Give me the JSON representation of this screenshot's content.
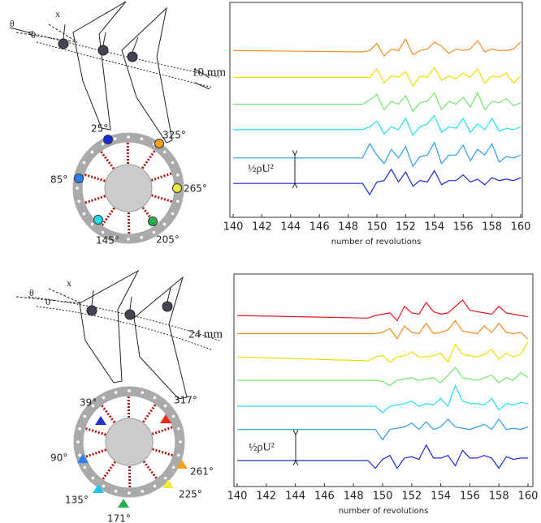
{
  "chart_data": [
    {
      "type": "line",
      "xlabel": "number of revolutions",
      "scale_label": "½ρU²",
      "xlim": [
        140,
        160
      ],
      "xticks": [
        140,
        142,
        144,
        146,
        148,
        150,
        152,
        154,
        156,
        158,
        160
      ],
      "ylim": [
        -1.2,
        6.4
      ],
      "x": [
        140,
        149,
        149.5,
        150,
        150.5,
        151,
        151.5,
        152,
        152.5,
        153,
        153.5,
        154,
        154.5,
        155,
        155.5,
        156,
        156.5,
        157,
        157.5,
        158,
        158.5,
        159,
        159.5,
        160
      ],
      "series": [
        {
          "color": "#f28c1e",
          "values": [
            4.7,
            4.65,
            4.7,
            4.95,
            4.5,
            4.75,
            4.7,
            5.1,
            4.55,
            4.7,
            4.75,
            5.0,
            4.85,
            4.6,
            4.75,
            4.7,
            4.75,
            5.05,
            4.65,
            4.75,
            4.7,
            4.7,
            4.75,
            5.0
          ]
        },
        {
          "color": "#ecdf00",
          "values": [
            3.75,
            3.75,
            3.75,
            4.05,
            3.55,
            3.8,
            3.75,
            3.95,
            3.45,
            3.8,
            3.75,
            4.1,
            3.65,
            3.8,
            3.7,
            3.9,
            3.75,
            4.05,
            3.55,
            3.8,
            3.75,
            3.9,
            3.55,
            3.8
          ]
        },
        {
          "color": "#6fe86f",
          "values": [
            2.8,
            2.8,
            2.95,
            3.15,
            2.6,
            2.9,
            2.8,
            3.1,
            2.55,
            2.85,
            2.9,
            3.2,
            2.6,
            2.9,
            2.8,
            3.05,
            2.7,
            3.2,
            2.6,
            2.9,
            2.85,
            3.0,
            2.75,
            2.85
          ]
        },
        {
          "color": "#1fdff0",
          "values": [
            1.9,
            1.9,
            2.0,
            2.2,
            1.75,
            2.0,
            1.9,
            2.3,
            1.7,
            2.0,
            2.1,
            2.4,
            1.8,
            2.0,
            1.95,
            2.3,
            1.8,
            2.1,
            1.9,
            2.3,
            1.85,
            1.95,
            1.9,
            2.0
          ]
        },
        {
          "color": "#2a9ef0",
          "values": [
            0.9,
            0.9,
            1.4,
            1.0,
            0.7,
            1.2,
            0.9,
            1.3,
            0.6,
            0.95,
            1.0,
            1.45,
            0.7,
            1.0,
            1.0,
            1.35,
            0.8,
            1.2,
            1.0,
            1.4,
            0.75,
            0.95,
            0.9,
            1.0
          ]
        },
        {
          "color": "#1a28d8",
          "values": [
            0,
            0,
            -0.4,
            0.05,
            0.1,
            0.5,
            0.05,
            0.4,
            -0.1,
            0.1,
            0.05,
            0.45,
            -0.05,
            0.1,
            0.1,
            0.3,
            0.05,
            0.15,
            -0.05,
            0.2,
            0.1,
            0.15,
            0.1,
            0.2
          ]
        }
      ]
    },
    {
      "type": "line",
      "xlabel": "number of revolutions",
      "scale_label": "½ρU²",
      "xlim": [
        140,
        160
      ],
      "xticks": [
        140,
        142,
        144,
        146,
        148,
        150,
        152,
        154,
        156,
        158,
        160
      ],
      "ylim": [
        -1,
        7.2
      ],
      "x": [
        140,
        149,
        149.5,
        150,
        150.5,
        151,
        151.5,
        152,
        152.5,
        153,
        153.5,
        154,
        154.5,
        155,
        155.5,
        156,
        156.5,
        157,
        157.5,
        158,
        158.5,
        159,
        159.5,
        160
      ],
      "series": [
        {
          "color": "#e8181b",
          "values": [
            5.6,
            5.5,
            5.6,
            5.65,
            5.7,
            5.4,
            5.95,
            5.7,
            5.65,
            6.1,
            5.75,
            5.65,
            5.7,
            5.95,
            6.2,
            5.8,
            5.75,
            5.7,
            5.65,
            5.95,
            5.7,
            5.65,
            5.6,
            5.55
          ]
        },
        {
          "color": "#f28c1e",
          "values": [
            4.9,
            4.9,
            4.9,
            4.95,
            5.1,
            4.7,
            5.2,
            4.95,
            4.9,
            5.3,
            4.9,
            4.95,
            5.05,
            5.4,
            5.0,
            4.95,
            4.9,
            5.2,
            4.95,
            5.3,
            4.95,
            4.9,
            4.95,
            4.7
          ]
        },
        {
          "color": "#ecdf00",
          "values": [
            4.0,
            3.85,
            4.0,
            4.05,
            3.8,
            4.0,
            4.05,
            4.2,
            4.0,
            4.0,
            4.05,
            4.15,
            3.8,
            4.5,
            4.1,
            4.05,
            4.0,
            4.1,
            4.3,
            3.9,
            4.15,
            4.0,
            4.1,
            4.6
          ]
        },
        {
          "color": "#6fe86f",
          "values": [
            3.1,
            3.1,
            3.1,
            3.05,
            2.9,
            3.1,
            3.15,
            3.2,
            3.1,
            3.15,
            3.2,
            3.0,
            3.3,
            3.6,
            3.2,
            3.15,
            3.1,
            3.2,
            3.3,
            3.0,
            3.2,
            3.1,
            3.4,
            3.2
          ]
        },
        {
          "color": "#1fdff0",
          "values": [
            2.1,
            2.1,
            2.1,
            1.85,
            2.1,
            2.15,
            2.2,
            2.3,
            2.1,
            2.2,
            2.15,
            2.4,
            2.1,
            2.9,
            2.3,
            2.2,
            2.2,
            2.15,
            2.4,
            1.95,
            2.2,
            2.15,
            2.25,
            2.2
          ]
        },
        {
          "color": "#2a9ef0",
          "values": [
            1.2,
            1.2,
            1.2,
            0.8,
            1.2,
            1.25,
            1.3,
            1.45,
            1.2,
            1.5,
            1.2,
            1.3,
            1.6,
            1.3,
            1.25,
            1.2,
            1.3,
            1.4,
            1.2,
            1.6,
            1.2,
            1.25,
            1.2,
            1.3
          ]
        },
        {
          "color": "#1a28d8",
          "values": [
            0,
            0,
            -0.3,
            0.05,
            0.2,
            -0.3,
            0.1,
            0.15,
            0.05,
            0.6,
            0.1,
            0.1,
            0.2,
            -0.2,
            0.4,
            0.1,
            0.1,
            0.2,
            0.1,
            -0.3,
            0.15,
            0.05,
            0.1,
            0.1
          ]
        }
      ]
    }
  ],
  "diagrams": [
    {
      "theta": "θ",
      "x": "x",
      "origin": "0",
      "gap": "10 mm",
      "marker": "circle",
      "sensors": [
        {
          "label": "25°",
          "color": "#1a28d8"
        },
        {
          "label": "325°",
          "color": "#f2a31e"
        },
        {
          "label": "85°",
          "color": "#2a7ef0"
        },
        {
          "label": "265°",
          "color": "#ecec40"
        },
        {
          "label": "145°",
          "color": "#1fdff0"
        },
        {
          "label": "205°",
          "color": "#22b24c"
        }
      ]
    },
    {
      "theta": "θ",
      "x": "x",
      "origin": "0",
      "gap": "24 mm",
      "marker": "triangle",
      "sensors": [
        {
          "label": "39°",
          "color": "#2030d0"
        },
        {
          "label": "317°",
          "color": "#e8281b"
        },
        {
          "label": "90°",
          "color": "#2a7ef0"
        },
        {
          "label": "261°",
          "color": "#f2a31e"
        },
        {
          "label": "225°",
          "color": "#ecec40"
        },
        {
          "label": "135°",
          "color": "#1fc8f0"
        },
        {
          "label": "171°",
          "color": "#22b24c"
        }
      ]
    }
  ]
}
